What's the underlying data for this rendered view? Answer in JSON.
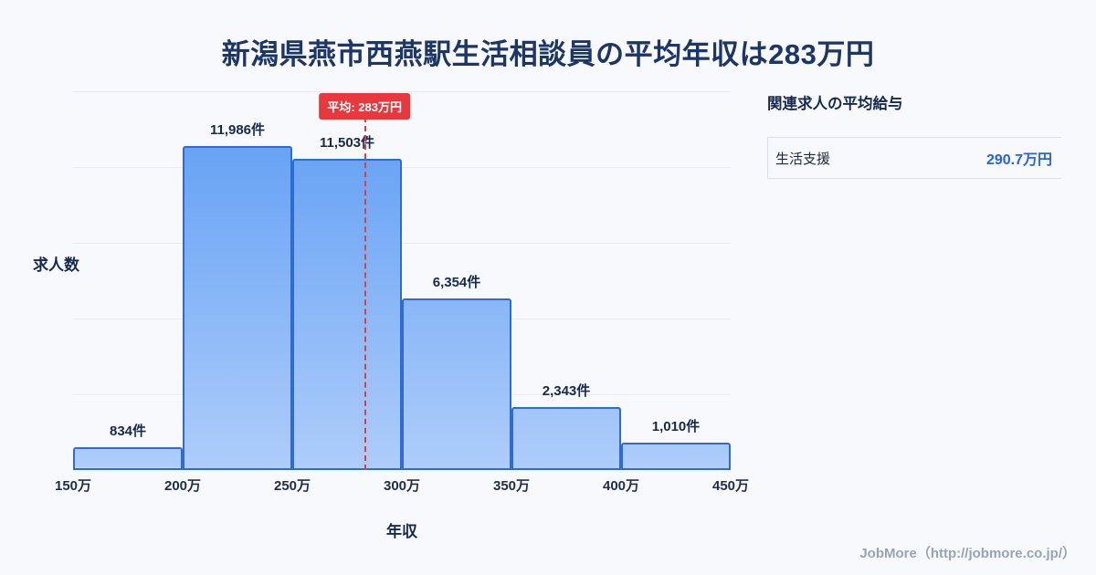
{
  "page": {
    "title": "新潟県燕市西燕駅生活相談員の平均年収は283万円",
    "footer_credit": "JobMore（http://jobmore.co.jp/）"
  },
  "chart_data": {
    "type": "bar",
    "xlabel": "年収",
    "ylabel": "求人数",
    "x_range": [
      150,
      450
    ],
    "x_unit": "万",
    "categories": [
      "150万",
      "200万",
      "250万",
      "300万",
      "350万",
      "400万",
      "450万"
    ],
    "bins": [
      {
        "from": "150万",
        "to": "200万",
        "count": 834,
        "label": "834件"
      },
      {
        "from": "200万",
        "to": "250万",
        "count": 11986,
        "label": "11,986件"
      },
      {
        "from": "250万",
        "to": "300万",
        "count": 11503,
        "label": "11,503件"
      },
      {
        "from": "300万",
        "to": "350万",
        "count": 6354,
        "label": "6,354件"
      },
      {
        "from": "350万",
        "to": "400万",
        "count": 2343,
        "label": "2,343件"
      },
      {
        "from": "400万",
        "to": "450万",
        "count": 1010,
        "label": "1,010件"
      }
    ],
    "values": [
      834,
      11986,
      11503,
      6354,
      2343,
      1010
    ],
    "value_labels": [
      "834件",
      "11,986件",
      "11,503件",
      "6,354件",
      "2,343件",
      "1,010件"
    ],
    "ylim": [
      0,
      14000
    ],
    "grid": true,
    "legend": false,
    "average_line": {
      "x_value": 283,
      "label": "平均: 283万円",
      "color": "#e23c3e",
      "badge_color": "#e8383d"
    },
    "bar_gradient_top": "#5b9bf3",
    "bar_gradient_bottom": "#aecdfa",
    "bar_border_color": "#2f6bd2"
  },
  "side_panel": {
    "heading": "関連求人の平均給与",
    "items": [
      {
        "label": "生活支援",
        "value": "290.7万円"
      }
    ],
    "value_color": "#2563eb"
  }
}
